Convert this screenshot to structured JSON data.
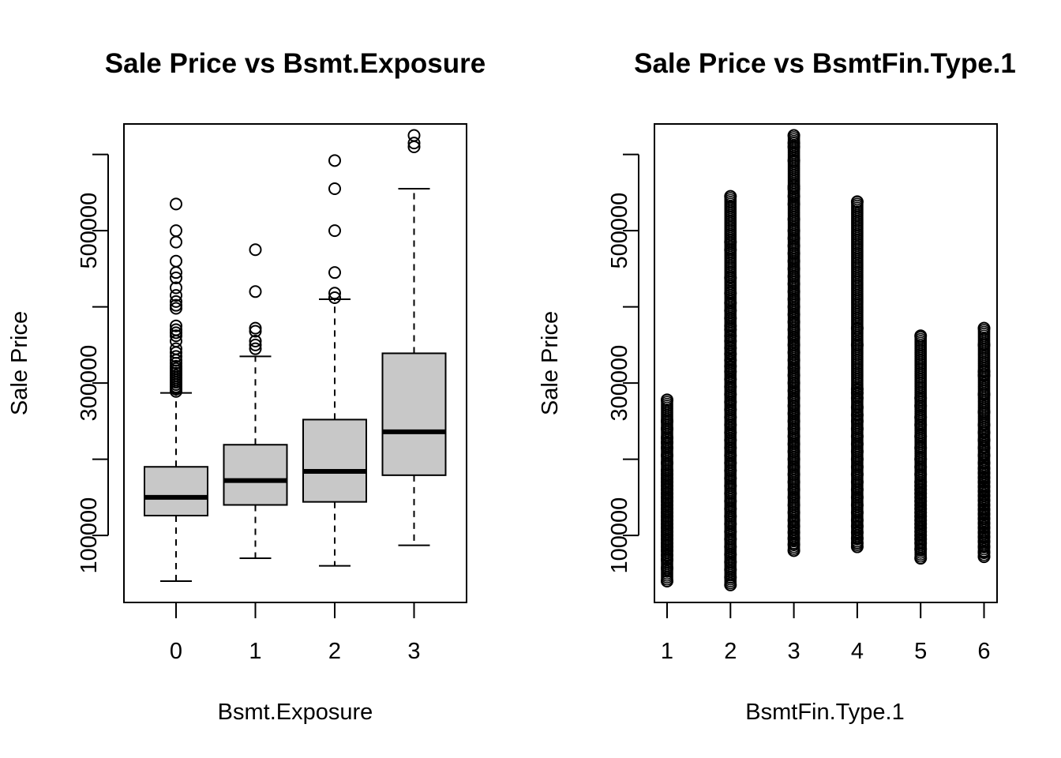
{
  "chart_data": [
    {
      "type": "boxplot",
      "title": "Sale Price vs Bsmt.Exposure",
      "xlabel": "Bsmt.Exposure",
      "ylabel": "Sale Price",
      "categories": [
        "0",
        "1",
        "2",
        "3"
      ],
      "y_ticks": [
        100000,
        300000,
        500000
      ],
      "y_tick_labels": [
        "100000",
        "300000",
        "500000"
      ],
      "ylim": [
        12000,
        640000
      ],
      "box_fill": "#c8c8c8",
      "boxes": [
        {
          "category": "0",
          "whisker_low": 40000,
          "q1": 126000,
          "median": 150000,
          "q3": 190000,
          "whisker_high": 287000,
          "outliers": [
            289000,
            292000,
            295000,
            298000,
            301000,
            304000,
            307000,
            310000,
            313000,
            316000,
            319000,
            322000,
            326000,
            330000,
            335000,
            340000,
            345000,
            355000,
            362000,
            366000,
            370000,
            375000,
            398000,
            402000,
            407000,
            415000,
            425000,
            438000,
            445000,
            460000,
            485000,
            500000,
            535000
          ]
        },
        {
          "category": "1",
          "whisker_low": 70000,
          "q1": 140000,
          "median": 172000,
          "q3": 219000,
          "whisker_high": 335000,
          "outliers": [
            345000,
            350000,
            355000,
            368000,
            372000,
            420000,
            475000
          ]
        },
        {
          "category": "2",
          "whisker_low": 60000,
          "q1": 144000,
          "median": 184000,
          "q3": 252000,
          "whisker_high": 410000,
          "outliers": [
            412000,
            418000,
            445000,
            500000,
            555000,
            592000
          ]
        },
        {
          "category": "3",
          "whisker_low": 87000,
          "q1": 179000,
          "median": 236000,
          "q3": 339000,
          "whisker_high": 555000,
          "outliers": [
            610000,
            615000,
            625000
          ]
        }
      ]
    },
    {
      "type": "scatter",
      "title": "Sale Price vs BsmtFin.Type.1",
      "xlabel": "BsmtFin.Type.1",
      "ylabel": "Sale Price",
      "x_ticks": [
        1,
        2,
        3,
        4,
        5,
        6
      ],
      "x_tick_labels": [
        "1",
        "2",
        "3",
        "4",
        "5",
        "6"
      ],
      "y_ticks": [
        100000,
        300000,
        500000
      ],
      "y_tick_labels": [
        "100000",
        "300000",
        "500000"
      ],
      "ylim": [
        12000,
        640000
      ],
      "columns": [
        {
          "x": 1,
          "min": 40000,
          "max": 278000,
          "points": [
            40000,
            57000,
            68000,
            74000,
            80000,
            85000,
            90000,
            95000,
            100000,
            105000,
            110000,
            115000,
            120000,
            125000,
            130000,
            135000,
            140000,
            145000,
            150000,
            155000,
            160000,
            165000,
            170000,
            175000,
            180000,
            185000,
            195000,
            205000,
            215000,
            222000,
            228000,
            240000,
            250000,
            278000
          ]
        },
        {
          "x": 2,
          "min": 35000,
          "max": 545000,
          "points": [
            35000,
            45000,
            55000,
            65000,
            75000,
            85000,
            95000,
            105000,
            115000,
            125000,
            135000,
            145000,
            155000,
            165000,
            175000,
            185000,
            195000,
            205000,
            215000,
            225000,
            235000,
            245000,
            255000,
            265000,
            275000,
            285000,
            295000,
            305000,
            315000,
            322000,
            330000,
            338000,
            346000,
            355000,
            362000,
            370000,
            375000,
            385000,
            395000,
            405000,
            418000,
            438000,
            475000,
            485000,
            545000
          ]
        },
        {
          "x": 3,
          "min": 80000,
          "max": 625000,
          "points": [
            80000,
            88000,
            96000,
            104000,
            112000,
            120000,
            130000,
            140000,
            150000,
            160000,
            170000,
            180000,
            190000,
            200000,
            210000,
            220000,
            230000,
            240000,
            250000,
            260000,
            270000,
            280000,
            290000,
            300000,
            310000,
            320000,
            330000,
            340000,
            350000,
            360000,
            370000,
            380000,
            390000,
            400000,
            410000,
            420000,
            430000,
            440000,
            450000,
            460000,
            470000,
            480000,
            490000,
            500000,
            515000,
            535000,
            545000,
            555000,
            558000,
            592000,
            610000,
            615000,
            625000
          ]
        },
        {
          "x": 4,
          "min": 85000,
          "max": 538000,
          "points": [
            85000,
            90000,
            96000,
            104000,
            112000,
            120000,
            130000,
            140000,
            150000,
            160000,
            170000,
            180000,
            190000,
            200000,
            210000,
            220000,
            230000,
            240000,
            250000,
            258000,
            268000,
            280000,
            287000,
            292000,
            350000,
            372000,
            538000
          ]
        },
        {
          "x": 5,
          "min": 70000,
          "max": 362000,
          "points": [
            70000,
            82000,
            90000,
            95000,
            100000,
            105000,
            110000,
            115000,
            120000,
            125000,
            130000,
            135000,
            140000,
            145000,
            150000,
            155000,
            160000,
            165000,
            170000,
            180000,
            190000,
            200000,
            215000,
            230000,
            245000,
            255000,
            270000,
            280000,
            362000
          ]
        },
        {
          "x": 6,
          "min": 72000,
          "max": 372000,
          "points": [
            72000,
            78000,
            85000,
            92000,
            98000,
            104000,
            110000,
            116000,
            122000,
            128000,
            134000,
            140000,
            146000,
            152000,
            158000,
            164000,
            170000,
            176000,
            182000,
            188000,
            195000,
            205000,
            215000,
            225000,
            235000,
            245000,
            262000,
            285000,
            310000,
            315000,
            350000,
            372000
          ]
        }
      ]
    }
  ]
}
